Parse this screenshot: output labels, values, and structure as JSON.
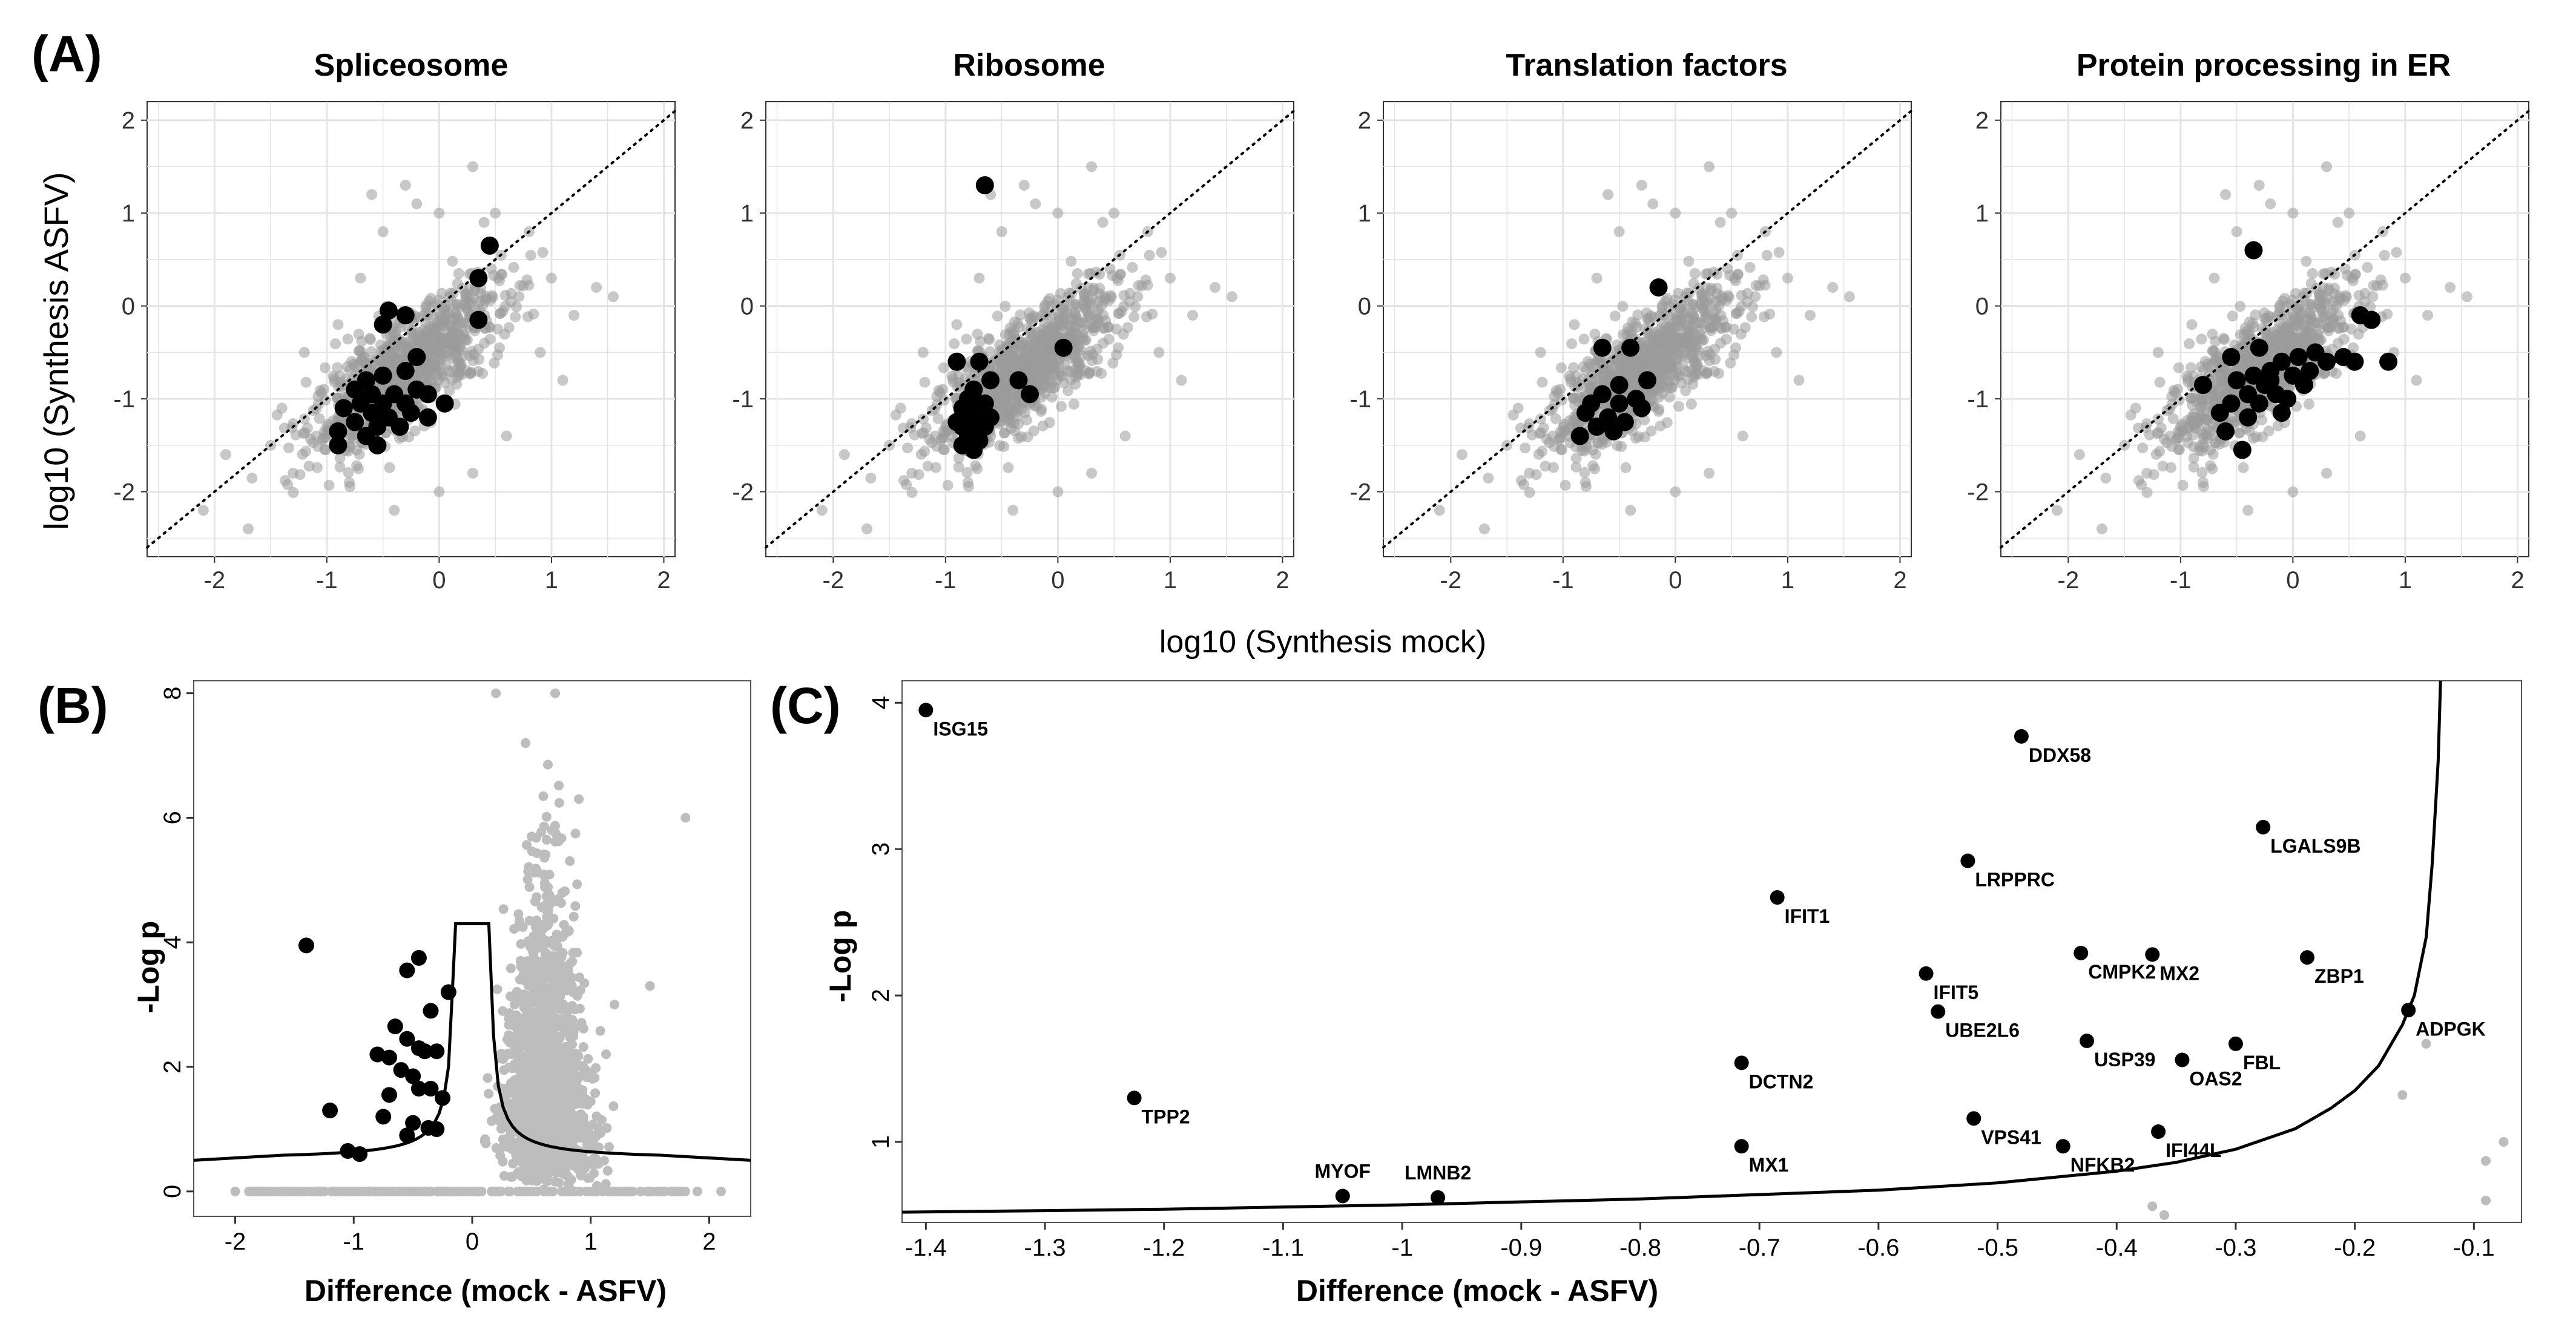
{
  "colors": {
    "grid": "#e4e4e4",
    "panel_border": "#333333",
    "highlight": "#000000",
    "background_point": "#9a9a9a",
    "volcano_point": "#bdbdbd",
    "curve": "#000000"
  },
  "panel_labels": {
    "a": "(A)",
    "b": "(B)",
    "c": "(C)"
  },
  "chart_data": [
    {
      "id": "A",
      "type": "scatter",
      "facets": [
        "Spliceosome",
        "Ribosome",
        "Translation factors",
        "Protein processing in ER"
      ],
      "xlabel": "log10 (Synthesis mock)",
      "ylabel": "log10 (Synthesis ASFV)",
      "xlim": [
        -2.6,
        2.1
      ],
      "ylim": [
        -2.7,
        2.2
      ],
      "xticks": [
        -2,
        -1,
        0,
        1,
        2
      ],
      "yticks": [
        -2,
        -1,
        0,
        1,
        2
      ],
      "reference_line": "y = x (dotted)",
      "background_cloud_note": "~4000 proteins, grey semi-transparent points centred near (-0.3, -0.7) with slope ~0.8",
      "background_points": [
        [
          -2.1,
          -2.2
        ],
        [
          -1.9,
          -1.6
        ],
        [
          -1.7,
          -2.4
        ],
        [
          -1.5,
          -1.5
        ],
        [
          -1.3,
          -1.8
        ],
        [
          -1.2,
          -0.5
        ],
        [
          -0.9,
          -0.2
        ],
        [
          -0.7,
          0.3
        ],
        [
          -0.5,
          0.8
        ],
        [
          -0.3,
          1.3
        ],
        [
          -0.2,
          1.1
        ],
        [
          0.0,
          1.0
        ],
        [
          0.3,
          1.5
        ],
        [
          0.5,
          1.0
        ],
        [
          0.8,
          0.8
        ],
        [
          1.0,
          0.3
        ],
        [
          1.2,
          -0.1
        ],
        [
          1.4,
          0.2
        ],
        [
          1.55,
          0.1
        ],
        [
          0.6,
          -1.4
        ],
        [
          0.3,
          -1.8
        ],
        [
          0.0,
          -2.0
        ],
        [
          -0.4,
          -2.2
        ],
        [
          -0.8,
          -1.9
        ],
        [
          -1.0,
          -1.3
        ],
        [
          0.9,
          -0.5
        ],
        [
          1.1,
          -0.8
        ],
        [
          -1.4,
          -1.1
        ],
        [
          0.4,
          0.9
        ],
        [
          -0.6,
          1.2
        ]
      ],
      "highlighted": [
        {
          "facet": "Spliceosome",
          "points": [
            [
              0.45,
              0.65
            ],
            [
              0.35,
              0.3
            ],
            [
              0.35,
              -0.15
            ],
            [
              -0.45,
              -0.05
            ],
            [
              -0.5,
              -0.2
            ],
            [
              -0.3,
              -0.1
            ],
            [
              -0.2,
              -0.55
            ],
            [
              -0.3,
              -0.7
            ],
            [
              -0.5,
              -0.75
            ],
            [
              -0.65,
              -0.8
            ],
            [
              -0.75,
              -0.9
            ],
            [
              -0.6,
              -0.95
            ],
            [
              -0.4,
              -0.95
            ],
            [
              -0.2,
              -0.9
            ],
            [
              -0.1,
              -0.95
            ],
            [
              -0.3,
              -1.05
            ],
            [
              -0.5,
              -1.05
            ],
            [
              -0.7,
              -1.05
            ],
            [
              -0.85,
              -1.1
            ],
            [
              -0.6,
              -1.15
            ],
            [
              -0.45,
              -1.2
            ],
            [
              -0.25,
              -1.15
            ],
            [
              -0.75,
              -1.25
            ],
            [
              -0.55,
              -1.3
            ],
            [
              -0.35,
              -1.3
            ],
            [
              -0.9,
              -1.35
            ],
            [
              -0.65,
              -1.4
            ],
            [
              -0.9,
              -1.5
            ],
            [
              -0.55,
              -1.5
            ],
            [
              -0.1,
              -1.2
            ],
            [
              0.05,
              -1.05
            ]
          ]
        },
        {
          "facet": "Ribosome",
          "points": [
            [
              -0.65,
              1.3
            ],
            [
              -0.9,
              -0.6
            ],
            [
              -0.7,
              -0.6
            ],
            [
              -0.6,
              -0.8
            ],
            [
              -0.35,
              -0.8
            ],
            [
              -0.25,
              -0.95
            ],
            [
              0.05,
              -0.45
            ],
            [
              -0.75,
              -0.9
            ],
            [
              -0.8,
              -1.0
            ],
            [
              -0.7,
              -1.05
            ],
            [
              -0.85,
              -1.1
            ],
            [
              -0.75,
              -1.15
            ],
            [
              -0.8,
              -1.2
            ],
            [
              -0.7,
              -1.25
            ],
            [
              -0.85,
              -1.3
            ],
            [
              -0.75,
              -1.35
            ],
            [
              -0.8,
              -1.4
            ],
            [
              -0.7,
              -1.45
            ],
            [
              -0.85,
              -1.5
            ],
            [
              -0.75,
              -1.55
            ],
            [
              -0.65,
              -1.3
            ],
            [
              -0.6,
              -1.2
            ],
            [
              -0.9,
              -1.25
            ],
            [
              -0.65,
              -1.05
            ]
          ]
        },
        {
          "facet": "Translation factors",
          "points": [
            [
              -0.15,
              0.2
            ],
            [
              -0.65,
              -0.45
            ],
            [
              -0.4,
              -0.45
            ],
            [
              -0.25,
              -0.8
            ],
            [
              -0.5,
              -0.85
            ],
            [
              -0.65,
              -0.95
            ],
            [
              -0.75,
              -1.05
            ],
            [
              -0.5,
              -1.05
            ],
            [
              -0.35,
              -1.0
            ],
            [
              -0.8,
              -1.15
            ],
            [
              -0.6,
              -1.2
            ],
            [
              -0.45,
              -1.25
            ],
            [
              -0.7,
              -1.3
            ],
            [
              -0.55,
              -1.35
            ],
            [
              -0.85,
              -1.4
            ],
            [
              -0.3,
              -1.1
            ]
          ]
        },
        {
          "facet": "Protein processing in ER",
          "points": [
            [
              -0.35,
              0.6
            ],
            [
              0.6,
              -0.1
            ],
            [
              0.7,
              -0.15
            ],
            [
              -0.3,
              -0.45
            ],
            [
              -0.55,
              -0.55
            ],
            [
              0.2,
              -0.5
            ],
            [
              0.3,
              -0.6
            ],
            [
              0.05,
              -0.55
            ],
            [
              -0.1,
              -0.6
            ],
            [
              0.45,
              -0.55
            ],
            [
              0.55,
              -0.6
            ],
            [
              -0.2,
              -0.7
            ],
            [
              -0.35,
              -0.75
            ],
            [
              0.0,
              -0.75
            ],
            [
              0.15,
              -0.7
            ],
            [
              -0.5,
              -0.8
            ],
            [
              0.1,
              -0.85
            ],
            [
              -0.25,
              -0.85
            ],
            [
              -0.15,
              -0.95
            ],
            [
              -0.4,
              -0.95
            ],
            [
              -0.05,
              -1.0
            ],
            [
              -0.55,
              -1.05
            ],
            [
              -0.3,
              -1.05
            ],
            [
              -0.8,
              -0.85
            ],
            [
              -0.65,
              -1.15
            ],
            [
              -0.4,
              -1.2
            ],
            [
              -0.1,
              -1.15
            ],
            [
              -0.6,
              -1.35
            ],
            [
              -0.45,
              -1.55
            ],
            [
              -0.2,
              -0.8
            ],
            [
              0.85,
              -0.6
            ]
          ]
        }
      ]
    },
    {
      "id": "B",
      "type": "scatter",
      "xlabel": "Difference (mock - ASFV)",
      "ylabel": "-Log p",
      "xlim": [
        -2.35,
        2.35
      ],
      "ylim": [
        -0.4,
        8.2
      ],
      "xticks": [
        -2,
        -1,
        0,
        1,
        2
      ],
      "yticks": [
        0,
        2,
        4,
        6,
        8
      ],
      "background_cloud_note": "~3000 proteins, grey points centred near x=0.6 spanning -Log p 0 to 7; many at -Log p = 0 across x",
      "grey_points": [
        [
          1.2,
          3.0
        ],
        [
          1.5,
          3.3
        ],
        [
          1.8,
          6.0
        ],
        [
          -0.9,
          0.0
        ],
        [
          -1.5,
          0.0
        ],
        [
          -2.0,
          0.0
        ],
        [
          1.9,
          0.0
        ],
        [
          2.1,
          0.0
        ],
        [
          0.2,
          8.0
        ],
        [
          0.7,
          8.0
        ],
        [
          0.45,
          7.2
        ],
        [
          0.9,
          6.3
        ]
      ],
      "significant_points": [
        [
          -1.4,
          3.95
        ],
        [
          -1.2,
          1.3
        ],
        [
          -1.05,
          0.65
        ],
        [
          -0.95,
          0.6
        ],
        [
          -0.75,
          1.2
        ],
        [
          -0.7,
          1.55
        ],
        [
          -0.7,
          2.15
        ],
        [
          -0.65,
          2.65
        ],
        [
          -0.6,
          1.95
        ],
        [
          -0.55,
          2.45
        ],
        [
          -0.55,
          3.55
        ],
        [
          -0.5,
          1.85
        ],
        [
          -0.5,
          1.1
        ],
        [
          -0.45,
          3.75
        ],
        [
          -0.45,
          2.3
        ],
        [
          -0.45,
          1.65
        ],
        [
          -0.4,
          2.25
        ],
        [
          -0.35,
          2.9
        ],
        [
          -0.35,
          1.65
        ],
        [
          -0.3,
          2.25
        ],
        [
          -0.3,
          1.0
        ],
        [
          -0.25,
          1.5
        ],
        [
          -0.2,
          3.2
        ],
        [
          -0.55,
          0.9
        ],
        [
          -0.8,
          2.2
        ],
        [
          -0.37,
          1.02
        ]
      ],
      "threshold_curve": {
        "note": "symmetric significance threshold (black line)",
        "baseline_y": 0.5,
        "vertical_x": 0.14,
        "top_y": 4.3
      }
    },
    {
      "id": "C",
      "type": "scatter",
      "xlabel": "Difference (mock - ASFV)",
      "ylabel": "-Log p",
      "xlim": [
        -1.42,
        -0.06
      ],
      "ylim": [
        0.45,
        4.15
      ],
      "xticks": [
        -1.4,
        -1.3,
        -1.2,
        -1.1,
        -1.0,
        -0.9,
        -0.8,
        -0.7,
        -0.6,
        -0.5,
        -0.4,
        -0.3,
        -0.2,
        -0.1
      ],
      "xtick_labels": [
        "-1.4",
        "-1.3",
        "-1.2",
        "-1.1",
        "-1",
        "-0.9",
        "-0.8",
        "-0.7",
        "-0.6",
        "-0.5",
        "-0.4",
        "-0.3",
        "-0.2",
        "-0.1"
      ],
      "yticks": [
        1,
        2,
        3,
        4
      ],
      "labeled_points": [
        {
          "label": "ISG15",
          "x": -1.4,
          "y": 3.95
        },
        {
          "label": "DDX58",
          "x": -0.48,
          "y": 3.77
        },
        {
          "label": "LGALS9B",
          "x": -0.277,
          "y": 3.15
        },
        {
          "label": "LRPPRC",
          "x": -0.525,
          "y": 2.92
        },
        {
          "label": "IFIT1",
          "x": -0.685,
          "y": 2.67
        },
        {
          "label": "CMPK2",
          "x": -0.43,
          "y": 2.29
        },
        {
          "label": "MX2",
          "x": -0.37,
          "y": 2.28
        },
        {
          "label": "ZBP1",
          "x": -0.24,
          "y": 2.26
        },
        {
          "label": "IFIT5",
          "x": -0.56,
          "y": 2.15
        },
        {
          "label": "ADPGK",
          "x": -0.155,
          "y": 1.9
        },
        {
          "label": "UBE2L6",
          "x": -0.55,
          "y": 1.89
        },
        {
          "label": "USP39",
          "x": -0.425,
          "y": 1.69
        },
        {
          "label": "FBL",
          "x": -0.3,
          "y": 1.67
        },
        {
          "label": "OAS2",
          "x": -0.345,
          "y": 1.56
        },
        {
          "label": "DCTN2",
          "x": -0.715,
          "y": 1.54
        },
        {
          "label": "TPP2",
          "x": -1.225,
          "y": 1.3
        },
        {
          "label": "VPS41",
          "x": -0.52,
          "y": 1.16
        },
        {
          "label": "IFI44L",
          "x": -0.365,
          "y": 1.07
        },
        {
          "label": "NFKB2",
          "x": -0.445,
          "y": 0.97
        },
        {
          "label": "MX1",
          "x": -0.715,
          "y": 0.97
        },
        {
          "label": "MYOF",
          "x": -1.05,
          "y": 0.63
        },
        {
          "label": "LMNB2",
          "x": -0.97,
          "y": 0.62
        }
      ],
      "grey_points": [
        [
          -0.16,
          1.32
        ],
        [
          -0.14,
          1.67
        ],
        [
          -0.075,
          1.0
        ],
        [
          -0.09,
          0.87
        ],
        [
          -0.09,
          0.6
        ],
        [
          -0.37,
          0.56
        ],
        [
          -0.36,
          0.5
        ]
      ],
      "threshold_curve": [
        [
          -1.42,
          0.52
        ],
        [
          -1.3,
          0.53
        ],
        [
          -1.2,
          0.54
        ],
        [
          -1.1,
          0.555
        ],
        [
          -1.0,
          0.57
        ],
        [
          -0.9,
          0.59
        ],
        [
          -0.8,
          0.61
        ],
        [
          -0.7,
          0.64
        ],
        [
          -0.6,
          0.67
        ],
        [
          -0.5,
          0.72
        ],
        [
          -0.4,
          0.8
        ],
        [
          -0.35,
          0.86
        ],
        [
          -0.3,
          0.95
        ],
        [
          -0.25,
          1.09
        ],
        [
          -0.22,
          1.23
        ],
        [
          -0.2,
          1.35
        ],
        [
          -0.18,
          1.52
        ],
        [
          -0.16,
          1.8
        ],
        [
          -0.15,
          2.0
        ],
        [
          -0.14,
          2.4
        ],
        [
          -0.135,
          2.9
        ],
        [
          -0.13,
          3.6
        ],
        [
          -0.128,
          4.15
        ]
      ]
    }
  ]
}
